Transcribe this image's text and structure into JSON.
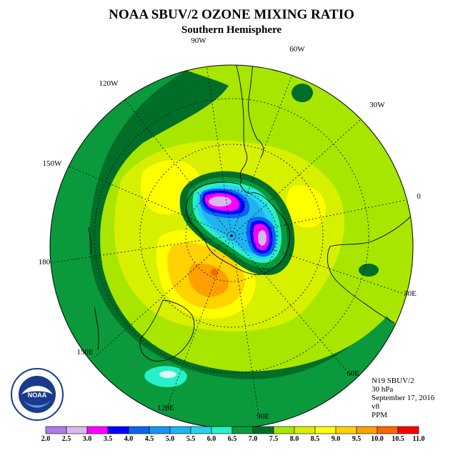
{
  "title": "NOAA SBUV/2 OZONE MIXING RATIO",
  "subtitle": "Southern Hemisphere",
  "longitude_labels": {
    "w90": "90W",
    "w60": "60W",
    "w30": "30W",
    "w120": "120W",
    "w150": "150W",
    "zero": "0",
    "e30": "30E",
    "e60": "60E",
    "e90": "90E",
    "e120": "120E",
    "e150": "150E",
    "d180": "180"
  },
  "info": {
    "instrument": "N19 SBUV/2",
    "level": "30 hPa",
    "date": "September 17, 2016",
    "version": "v8",
    "units": "PPM"
  },
  "logo": {
    "text": "NOAA",
    "ring_text": "NATIONAL OCEANIC AND ATMOSPHERIC ADMINISTRATION · U.S. DEPARTMENT OF COMMERCE"
  },
  "colorbar": {
    "ticks": [
      "2.0",
      "2.5",
      "3.0",
      "3.5",
      "4.0",
      "4.5",
      "5.0",
      "5.5",
      "6.0",
      "6.5",
      "7.0",
      "7.5",
      "8.0",
      "8.5",
      "9.0",
      "9.5",
      "10.0",
      "10.5",
      "11.0"
    ],
    "colors": [
      "#b07ae8",
      "#d8b8f0",
      "#ff00ff",
      "#0000ff",
      "#0a64f0",
      "#1496f0",
      "#1eb4f0",
      "#28d2f0",
      "#28f0c8",
      "#0a9a3c",
      "#006e28",
      "#a8e600",
      "#d7f000",
      "#ffff00",
      "#ffd200",
      "#ffa000",
      "#ff6400",
      "#ff0000",
      "#8b4a32"
    ]
  },
  "colors": {
    "background": "#ffffff"
  }
}
